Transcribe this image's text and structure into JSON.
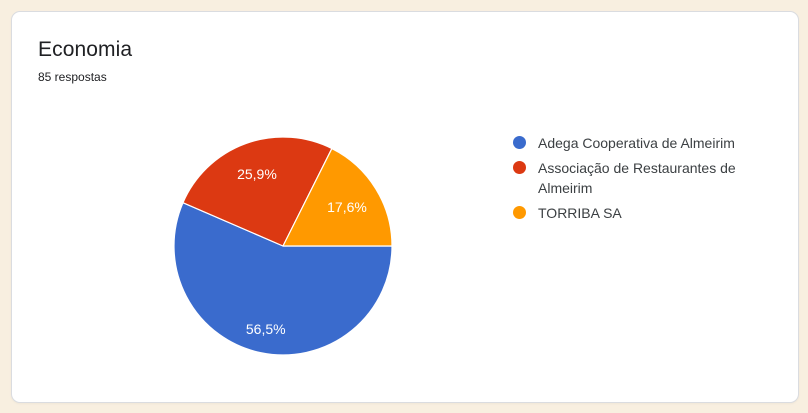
{
  "card": {
    "title": "Economia",
    "subtitle": "85 respostas"
  },
  "chart_data": {
    "type": "pie",
    "title": "Economia",
    "responses_total": 85,
    "legend_position": "right",
    "start_angle_deg": 90,
    "direction": "clockwise",
    "slices": [
      {
        "label": "Adega Cooperativa de Almeirim",
        "value_pct": 56.5,
        "display": "56,5%",
        "color": "#3A6BCD"
      },
      {
        "label": "Associação de Restaurantes de Almeirim",
        "value_pct": 25.9,
        "display": "25,9%",
        "color": "#DC3912"
      },
      {
        "label": "TORRIBA SA",
        "value_pct": 17.6,
        "display": "17,6%",
        "color": "#FF9900"
      }
    ]
  }
}
